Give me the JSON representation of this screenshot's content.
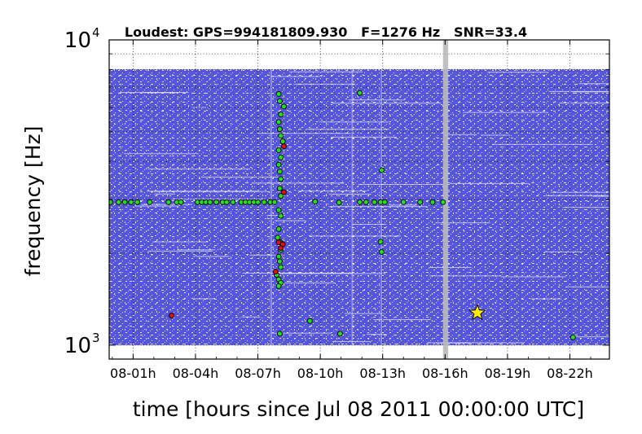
{
  "chart_data": {
    "type": "scatter",
    "title": "Loudest: GPS=994181809.930   F=1276 Hz   SNR=33.4",
    "xlabel": "time [hours since Jul 08 2011 00:00:00 UTC]",
    "ylabel": "frequency [Hz]",
    "xlim": [
      -0.15,
      23.9
    ],
    "ylim": [
      900,
      10000
    ],
    "yscale": "log",
    "grid": true,
    "x_ticks": [
      {
        "value": 1,
        "label": "08-01h"
      },
      {
        "value": 4,
        "label": "08-04h"
      },
      {
        "value": 7,
        "label": "08-07h"
      },
      {
        "value": 10,
        "label": "08-10h"
      },
      {
        "value": 13,
        "label": "08-13h"
      },
      {
        "value": 16,
        "label": "08-16h"
      },
      {
        "value": 19,
        "label": "08-19h"
      },
      {
        "value": 22,
        "label": "08-22h"
      }
    ],
    "y_ticks": [
      {
        "value": 1000,
        "base": "10",
        "exp": "3"
      },
      {
        "value": 10000,
        "base": "10",
        "exp": "4"
      }
    ],
    "colors": {
      "background_triggers": "#5555dd",
      "green_triggers": "#22dd22",
      "red_triggers": "#dd1111",
      "loudest_marker": "#ffee00",
      "gap_band": "#bbbbbb"
    },
    "data_gap": [
      15.9,
      16.15
    ],
    "background_trigger_band": {
      "x": [
        -0.15,
        23.9
      ],
      "y": [
        1000,
        8000
      ]
    },
    "loudest": {
      "x": 17.55,
      "y": 1276
    },
    "series": [
      {
        "color": "green",
        "points": [
          [
            -0.1,
            2940
          ],
          [
            0.3,
            2940
          ],
          [
            0.6,
            2940
          ],
          [
            0.9,
            2940
          ],
          [
            1.2,
            2940
          ],
          [
            1.8,
            2940
          ],
          [
            2.7,
            2940
          ],
          [
            3.1,
            2940
          ],
          [
            3.3,
            2940
          ],
          [
            4.1,
            2940
          ],
          [
            4.3,
            2940
          ],
          [
            4.5,
            2940
          ],
          [
            4.7,
            2940
          ],
          [
            5.0,
            2940
          ],
          [
            5.3,
            2940
          ],
          [
            5.5,
            2940
          ],
          [
            5.8,
            2940
          ],
          [
            6.2,
            2940
          ],
          [
            6.4,
            2940
          ],
          [
            6.6,
            2940
          ],
          [
            6.8,
            2940
          ],
          [
            7.0,
            2940
          ],
          [
            7.3,
            2940
          ],
          [
            7.6,
            2940
          ],
          [
            7.8,
            2940
          ],
          [
            9.75,
            2950
          ],
          [
            10.9,
            2930
          ],
          [
            11.9,
            2940
          ],
          [
            12.2,
            2940
          ],
          [
            12.6,
            2940
          ],
          [
            12.9,
            2940
          ],
          [
            13.1,
            2940
          ],
          [
            14.0,
            2940
          ],
          [
            14.8,
            2940
          ],
          [
            15.4,
            2940
          ],
          [
            15.9,
            2940
          ],
          [
            8.0,
            6650
          ],
          [
            8.05,
            6300
          ],
          [
            8.25,
            6050
          ],
          [
            8.1,
            5700
          ],
          [
            8.0,
            5380
          ],
          [
            8.05,
            5100
          ],
          [
            8.1,
            4850
          ],
          [
            8.2,
            4650
          ],
          [
            8.0,
            4350
          ],
          [
            8.1,
            4120
          ],
          [
            8.0,
            3900
          ],
          [
            8.05,
            3700
          ],
          [
            8.1,
            3500
          ],
          [
            8.05,
            3260
          ],
          [
            8.1,
            3080
          ],
          [
            8.0,
            2770
          ],
          [
            8.1,
            2650
          ],
          [
            8.0,
            2400
          ],
          [
            7.95,
            2250
          ],
          [
            8.05,
            2180
          ],
          [
            8.1,
            2050
          ],
          [
            8.0,
            1950
          ],
          [
            8.05,
            1880
          ],
          [
            8.1,
            1800
          ],
          [
            7.9,
            1700
          ],
          [
            8.0,
            1640
          ],
          [
            8.1,
            1600
          ],
          [
            8.0,
            1560
          ],
          [
            8.05,
            1090
          ],
          [
            9.5,
            1200
          ],
          [
            10.95,
            1090
          ],
          [
            11.9,
            6700
          ],
          [
            12.95,
            3740
          ],
          [
            12.9,
            2180
          ],
          [
            12.95,
            2020
          ],
          [
            22.15,
            1060
          ]
        ]
      },
      {
        "color": "red",
        "points": [
          [
            2.85,
            1250
          ],
          [
            8.25,
            4480
          ],
          [
            8.25,
            3170
          ],
          [
            8.0,
            2170
          ],
          [
            8.1,
            2080
          ],
          [
            8.2,
            2140
          ],
          [
            7.85,
            1740
          ]
        ]
      }
    ]
  }
}
